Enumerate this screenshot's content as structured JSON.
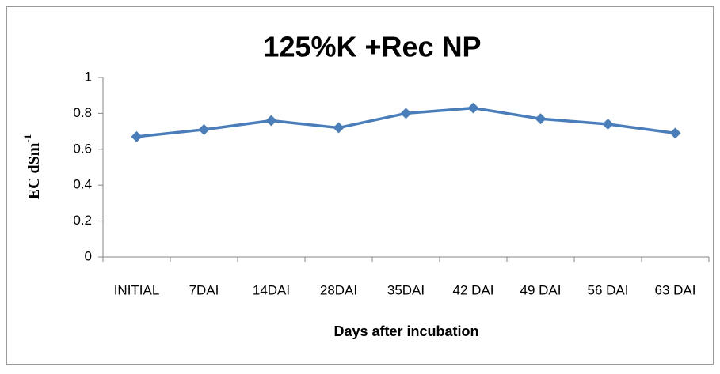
{
  "chart_data": {
    "type": "line",
    "title": "125%K +Rec NP",
    "x_label": "Days after incubation",
    "y_label": {
      "text": "EC dSm",
      "superscript": "-1"
    },
    "categories": [
      "INITIAL",
      "7DAI",
      "14DAI",
      "28DAI",
      "35DAI",
      "42 DAI",
      "49 DAI",
      "56 DAI",
      "63 DAI"
    ],
    "series": [
      {
        "color": "#4a7ebb",
        "values": [
          0.67,
          0.71,
          0.76,
          0.72,
          0.8,
          0.83,
          0.77,
          0.74,
          0.69
        ]
      }
    ],
    "ylim": [
      0,
      1
    ],
    "yticks": [
      0,
      0.2,
      0.4,
      0.6,
      0.8,
      1
    ],
    "grid": false
  }
}
